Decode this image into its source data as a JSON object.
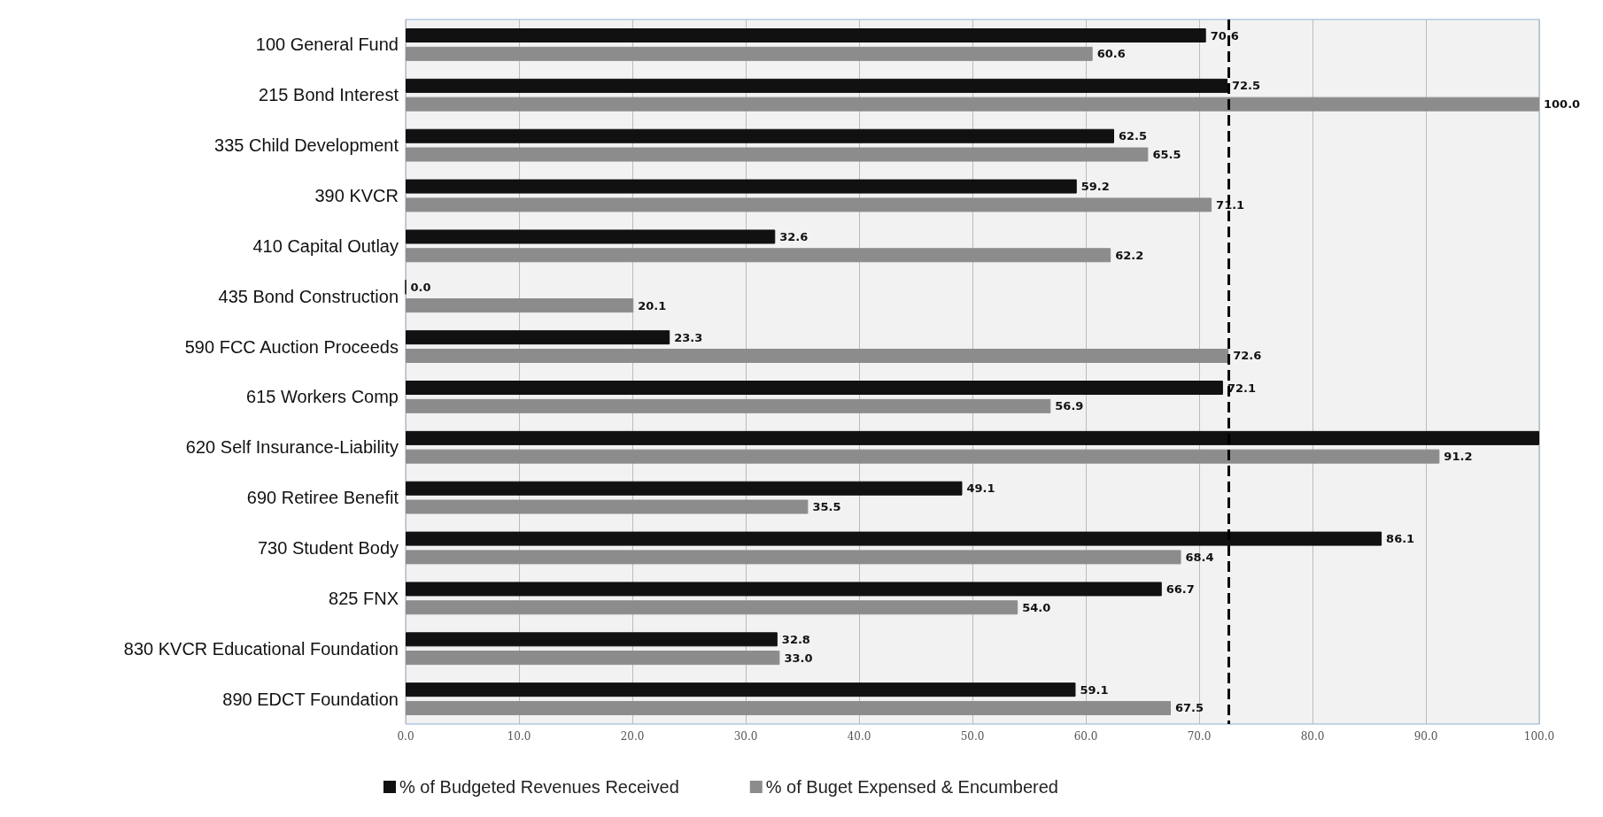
{
  "chart_data": {
    "type": "bar",
    "orientation": "horizontal",
    "categories": [
      "100 General Fund",
      "215 Bond Interest",
      "335 Child Development",
      "390 KVCR",
      "410 Capital Outlay",
      "435 Bond Construction",
      "590 FCC Auction Proceeds",
      "615 Workers Comp",
      "620 Self Insurance-Liability",
      "690 Retiree Benefit",
      "730 Student Body",
      "825 FNX",
      "830 KVCR Educational Foundation",
      "890 EDCT Foundation"
    ],
    "series": [
      {
        "name": "% of Budgeted Revenues Received",
        "color": "#111111",
        "values": [
          70.6,
          72.5,
          62.5,
          59.2,
          32.6,
          0.0,
          23.3,
          72.1,
          100.0,
          49.1,
          86.1,
          66.7,
          32.8,
          59.1
        ],
        "value_labels": [
          "70.6",
          "72.5",
          "62.5",
          "59.2",
          "32.6",
          "0.0",
          "23.3",
          "72.1",
          null,
          "49.1",
          "86.1",
          "66.7",
          "32.8",
          "59.1"
        ]
      },
      {
        "name": "% of Buget Expensed & Encumbered",
        "color": "#8c8c8c",
        "values": [
          60.6,
          100.0,
          65.5,
          71.1,
          62.2,
          20.1,
          72.6,
          56.9,
          91.2,
          35.5,
          68.4,
          54.0,
          33.0,
          67.5
        ],
        "value_labels": [
          "60.6",
          "100.0",
          "65.5",
          "71.1",
          "62.2",
          "20.1",
          "72.6",
          "56.9",
          "91.2",
          "35.5",
          "68.4",
          "54.0",
          "33.0",
          "67.5"
        ]
      }
    ],
    "xlim": [
      0,
      100
    ],
    "xticks": [
      {
        "value": 0,
        "label": "0.0"
      },
      {
        "value": 10,
        "label": "10.0"
      },
      {
        "value": 20,
        "label": "20.0"
      },
      {
        "value": 30,
        "label": "30.0"
      },
      {
        "value": 40,
        "label": "40.0"
      },
      {
        "value": 50,
        "label": "50.0"
      },
      {
        "value": 60,
        "label": "60.0"
      },
      {
        "value": 70,
        "label": "70.0"
      },
      {
        "value": 80,
        "label": "80.0"
      },
      {
        "value": 90,
        "label": "90.0"
      },
      {
        "value": 100,
        "label": "100.0"
      }
    ],
    "ref_lines": [
      {
        "axis": "x",
        "value": 72.6,
        "color": "#000000",
        "line_style": "dashed"
      }
    ],
    "grid": "x",
    "legend": "bottom"
  }
}
